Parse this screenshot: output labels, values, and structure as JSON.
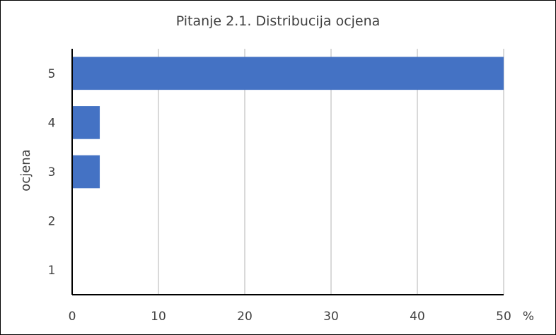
{
  "chart_data": {
    "type": "bar",
    "orientation": "horizontal",
    "title": "Pitanje 2.1. Distribucija ocjena",
    "ylabel": "ocjena",
    "xlabel": "",
    "x_unit": "%",
    "categories": [
      "5",
      "4",
      "3",
      "2",
      "1"
    ],
    "values": [
      50,
      3.2,
      3.2,
      0,
      0
    ],
    "xlim": [
      0,
      50
    ],
    "x_ticks": [
      "0",
      "10",
      "20",
      "30",
      "40",
      "50"
    ],
    "grid": true,
    "legend": "none",
    "bar_color": "#4472C4",
    "grid_color": "#D9D9D9"
  }
}
